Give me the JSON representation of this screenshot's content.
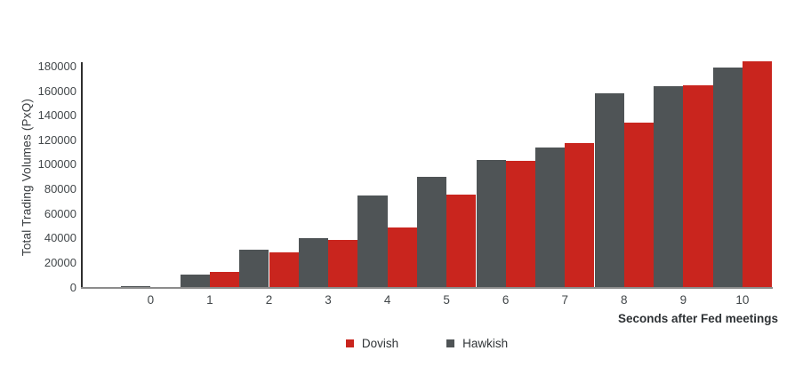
{
  "chart_data": {
    "type": "bar",
    "title": "",
    "xlabel": "Seconds after Fed meetings",
    "ylabel": "Total Trading Volumes (PxQ)",
    "categories": [
      "0",
      "1",
      "2",
      "3",
      "4",
      "5",
      "6",
      "7",
      "8",
      "9",
      "10"
    ],
    "series": [
      {
        "name": "Dovish",
        "color": "#C9251E",
        "bar_position": "right",
        "values": [
          500,
          13500,
          29500,
          39500,
          50000,
          77000,
          104000,
          119000,
          135000,
          166000,
          185000
        ]
      },
      {
        "name": "Hawkish",
        "color": "#4F5456",
        "bar_position": "left",
        "values": [
          1800,
          11500,
          32000,
          41000,
          76000,
          91000,
          105000,
          115000,
          159000,
          165000,
          180500
        ]
      }
    ],
    "yticks": [
      0,
      20000,
      40000,
      60000,
      80000,
      100000,
      120000,
      140000,
      160000,
      180000
    ],
    "ylim": [
      0,
      190000
    ],
    "grid": false,
    "legend_position": "bottom",
    "background": "#ffffff"
  },
  "layout_colors": {
    "axis_line": "#2e2e2e",
    "baseline": "#8c8c8c",
    "tick_text": "#42474a"
  }
}
